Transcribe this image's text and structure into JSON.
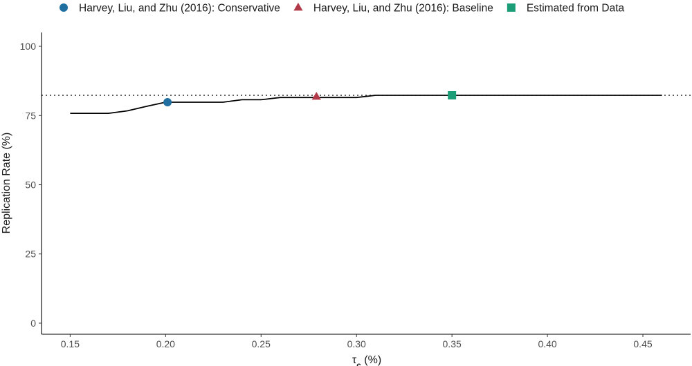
{
  "chart_data": {
    "type": "line",
    "xlabel_symbol": "τ",
    "xlabel_subscript": "c",
    "xlabel_suffix": " (%)",
    "ylabel": "Replication Rate (%)",
    "xlim": [
      0.135,
      0.475
    ],
    "ylim": [
      -4,
      105
    ],
    "x_ticks": [
      0.15,
      0.2,
      0.25,
      0.3,
      0.35,
      0.4,
      0.45
    ],
    "x_tick_labels": [
      "0.15",
      "0.20",
      "0.25",
      "0.30",
      "0.35",
      "0.40",
      "0.45"
    ],
    "y_ticks": [
      0,
      25,
      50,
      75,
      100
    ],
    "y_tick_labels": [
      "0",
      "25",
      "50",
      "75",
      "100"
    ],
    "grid": false,
    "legend_position": "top",
    "series": [
      {
        "x": [
          0.15,
          0.16,
          0.17,
          0.18,
          0.19,
          0.2,
          0.21,
          0.22,
          0.23,
          0.24,
          0.25,
          0.26,
          0.27,
          0.28,
          0.29,
          0.3,
          0.31,
          0.32,
          0.33,
          0.34,
          0.35,
          0.36,
          0.37,
          0.38,
          0.39,
          0.4,
          0.41,
          0.42,
          0.43,
          0.44,
          0.45,
          0.46
        ],
        "y": [
          75.8,
          75.8,
          75.8,
          76.7,
          78.3,
          79.8,
          79.8,
          79.8,
          79.8,
          80.7,
          80.7,
          81.5,
          81.5,
          81.5,
          81.5,
          81.5,
          82.3,
          82.3,
          82.3,
          82.3,
          82.3,
          82.3,
          82.3,
          82.3,
          82.3,
          82.3,
          82.3,
          82.3,
          82.3,
          82.3,
          82.3,
          82.3
        ],
        "color": "#000000"
      }
    ],
    "reference_line": {
      "y": 82.3,
      "style": "dotted",
      "color": "#000000"
    },
    "points": [
      {
        "name": "Harvey, Liu, and Zhu (2016): Conservative",
        "x": 0.201,
        "y": 79.8,
        "shape": "circle",
        "color": "#1f6fa0"
      },
      {
        "name": "Harvey, Liu, and Zhu (2016): Baseline",
        "x": 0.279,
        "y": 81.8,
        "shape": "triangle",
        "color": "#b23a48"
      },
      {
        "name": "Estimated from Data",
        "x": 0.35,
        "y": 82.3,
        "shape": "square",
        "color": "#1b9e77"
      }
    ]
  }
}
